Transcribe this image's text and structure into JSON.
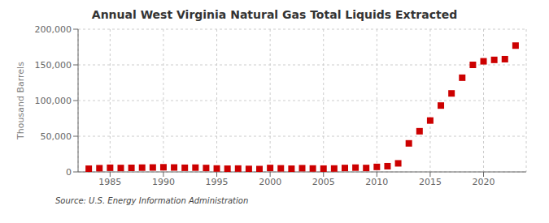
{
  "chart_data": {
    "type": "scatter",
    "title": "Annual West Virginia Natural Gas Total Liquids Extracted",
    "y_label": "Thousand Barrels",
    "annotations": [
      "Source: U.S. Energy Information Administration"
    ],
    "x": [
      1983,
      1984,
      1985,
      1986,
      1987,
      1988,
      1989,
      1990,
      1991,
      1992,
      1993,
      1994,
      1995,
      1996,
      1997,
      1998,
      1999,
      2000,
      2001,
      2002,
      2003,
      2004,
      2005,
      2006,
      2007,
      2008,
      2009,
      2010,
      2011,
      2012,
      2013,
      2014,
      2015,
      2016,
      2017,
      2018,
      2019,
      2020,
      2021,
      2022,
      2023
    ],
    "values": [
      4500,
      5200,
      5800,
      5500,
      5700,
      6000,
      6200,
      6500,
      6200,
      5800,
      6000,
      5500,
      4800,
      4500,
      4700,
      4200,
      4000,
      5500,
      5000,
      4500,
      5200,
      4800,
      4600,
      4800,
      5500,
      6000,
      5500,
      7000,
      8000,
      12000,
      40000,
      57000,
      72000,
      93000,
      110000,
      132000,
      150000,
      155000,
      157000,
      158000,
      177000
    ],
    "color": "#cc0000",
    "marker": "square",
    "grid": true,
    "xlim": [
      1982,
      2024
    ],
    "xticks": [
      1985,
      1990,
      1995,
      2000,
      2005,
      2010,
      2015,
      2020
    ],
    "ylim": [
      0,
      200000
    ],
    "yticks": [
      0,
      {
        "value": 50000,
        "label": "50,000"
      },
      {
        "value": 100000,
        "label": "100,000"
      },
      {
        "value": 150000,
        "label": "150,000"
      },
      {
        "value": 200000,
        "label": "200,000"
      }
    ]
  }
}
